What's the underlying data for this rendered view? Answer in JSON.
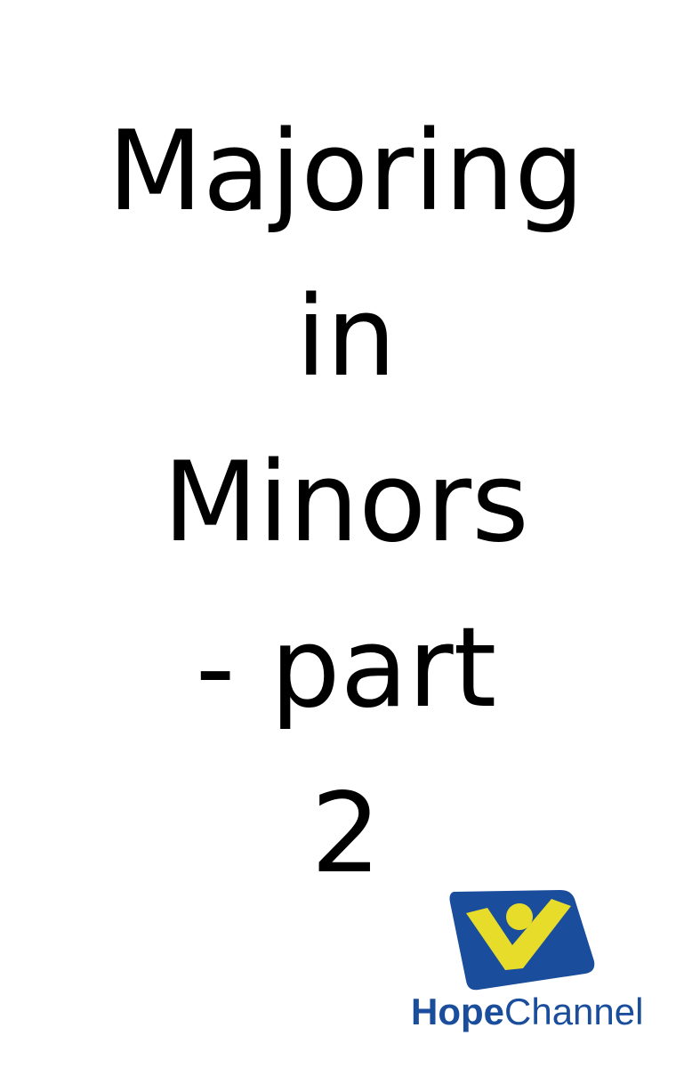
{
  "title": {
    "lines": [
      "Majoring",
      "in",
      "Minors",
      "- part",
      "2"
    ]
  },
  "logo": {
    "brand_bold": "Hope",
    "brand_regular": "Channel",
    "colors": {
      "blue": "#1a4d9c",
      "yellow": "#e8dc2b"
    }
  }
}
